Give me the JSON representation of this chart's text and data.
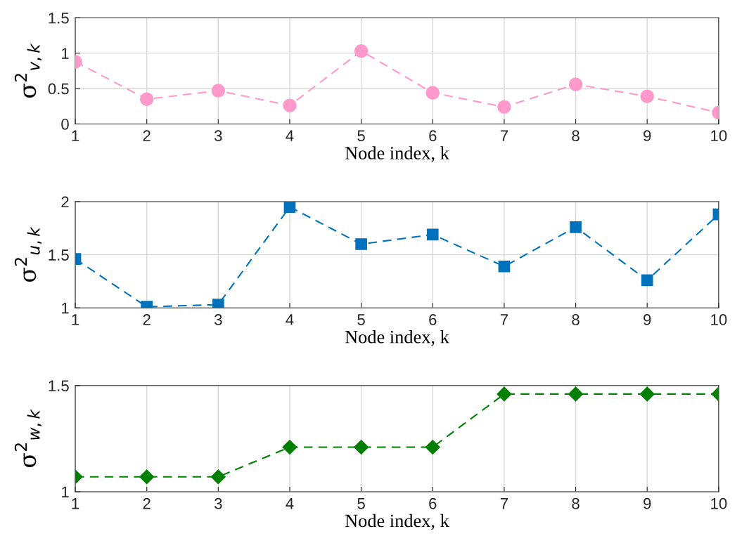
{
  "chart_data": [
    {
      "type": "line",
      "x": [
        1,
        2,
        3,
        4,
        5,
        6,
        7,
        8,
        9,
        10
      ],
      "xlim": [
        1,
        10
      ],
      "xticks": [
        1,
        2,
        3,
        4,
        5,
        6,
        7,
        8,
        9,
        10
      ],
      "ylim": [
        0,
        1.5
      ],
      "yticks": [
        0,
        0.5,
        1,
        1.5
      ],
      "xlabel": "Node index, k",
      "ylabel": "σ$^{2}$$_{v,k}$",
      "grid": true,
      "marker": "circle",
      "line_style": "dashed",
      "series": [
        {
          "color": "#ff99cc",
          "values": [
            0.88,
            0.35,
            0.47,
            0.26,
            1.03,
            0.44,
            0.24,
            0.56,
            0.39,
            0.16
          ]
        }
      ]
    },
    {
      "type": "line",
      "x": [
        1,
        2,
        3,
        4,
        5,
        6,
        7,
        8,
        9,
        10
      ],
      "xlim": [
        1,
        10
      ],
      "xticks": [
        1,
        2,
        3,
        4,
        5,
        6,
        7,
        8,
        9,
        10
      ],
      "ylim": [
        1,
        2
      ],
      "yticks": [
        1,
        1.5,
        2
      ],
      "xlabel": "Node index, k",
      "ylabel": "σ$^{2}$$_{u,k}$",
      "grid": true,
      "marker": "square",
      "line_style": "dashed",
      "series": [
        {
          "color": "#0072bd",
          "values": [
            1.46,
            1.01,
            1.03,
            1.95,
            1.6,
            1.69,
            1.39,
            1.76,
            1.26,
            1.88
          ]
        }
      ]
    },
    {
      "type": "line",
      "x": [
        1,
        2,
        3,
        4,
        5,
        6,
        7,
        8,
        9,
        10
      ],
      "xlim": [
        1,
        10
      ],
      "xticks": [
        1,
        2,
        3,
        4,
        5,
        6,
        7,
        8,
        9,
        10
      ],
      "ylim": [
        1,
        1.5
      ],
      "yticks": [
        1,
        1.5
      ],
      "xlabel": "Node index, k",
      "ylabel": "σ$^{2}$$_{w,k}$",
      "grid": true,
      "marker": "diamond",
      "line_style": "dashed",
      "series": [
        {
          "color": "#007f00",
          "values": [
            1.07,
            1.07,
            1.07,
            1.21,
            1.21,
            1.21,
            1.46,
            1.46,
            1.46,
            1.46
          ]
        }
      ]
    }
  ]
}
